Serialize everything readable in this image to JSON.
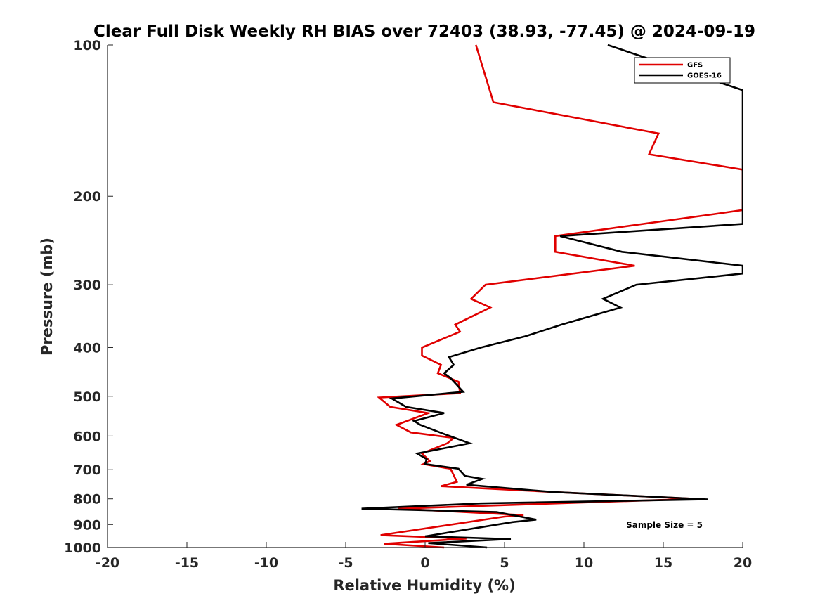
{
  "chart_data": {
    "type": "line",
    "title": "Clear Full Disk Weekly RH BIAS over 72403 (38.93, -77.45) @ 2024-09-19",
    "xlabel": "Relative Humidity (%)",
    "ylabel": "Pressure (mb)",
    "xlim": [
      -20,
      20
    ],
    "ylim": [
      100,
      1000
    ],
    "y_scale": "log",
    "y_reversed": true,
    "x_ticks": [
      -20,
      -15,
      -10,
      -5,
      0,
      5,
      10,
      15,
      20
    ],
    "x_tick_labels": [
      "-20",
      "-15",
      "-10",
      "-5",
      "0",
      "5",
      "10",
      "15",
      "20"
    ],
    "y_ticks": [
      100,
      200,
      300,
      400,
      500,
      600,
      700,
      800,
      900,
      1000
    ],
    "y_tick_labels": [
      "100",
      "200",
      "300",
      "400",
      "500",
      "600",
      "700",
      "800",
      "900",
      "1000"
    ],
    "grid": false,
    "legend_position": "top-right",
    "annotation": "Sample Size = 5",
    "series": [
      {
        "name": "GFS",
        "color": "#e00000",
        "points": [
          [
            3.2,
            100
          ],
          [
            4.3,
            130
          ],
          [
            14.7,
            150
          ],
          [
            14.1,
            165
          ],
          [
            20.0,
            177
          ],
          [
            20.0,
            213
          ],
          [
            18.2,
            217
          ],
          [
            8.2,
            240
          ],
          [
            8.2,
            258
          ],
          [
            13.2,
            275
          ],
          [
            3.8,
            300
          ],
          [
            2.9,
            320
          ],
          [
            4.1,
            333
          ],
          [
            1.9,
            360
          ],
          [
            2.2,
            372
          ],
          [
            -0.2,
            400
          ],
          [
            -0.2,
            415
          ],
          [
            1.0,
            433
          ],
          [
            0.8,
            450
          ],
          [
            2.1,
            468
          ],
          [
            2.2,
            493
          ],
          [
            -2.9,
            503
          ],
          [
            -2.2,
            525
          ],
          [
            0.2,
            540
          ],
          [
            -1.8,
            570
          ],
          [
            -0.9,
            590
          ],
          [
            1.8,
            605
          ],
          [
            1.4,
            620
          ],
          [
            -0.2,
            650
          ],
          [
            0.3,
            673
          ],
          [
            -0.1,
            682
          ],
          [
            1.6,
            697
          ],
          [
            2.0,
            740
          ],
          [
            1.0,
            755
          ],
          [
            8.0,
            775
          ],
          [
            17.0,
            800
          ],
          [
            -1.7,
            837
          ],
          [
            6.2,
            862
          ],
          [
            5.0,
            868
          ],
          [
            -2.8,
            945
          ],
          [
            2.6,
            960
          ],
          [
            -2.6,
            983
          ],
          [
            1.2,
            1000
          ]
        ]
      },
      {
        "name": "GOES-16",
        "color": "#000000",
        "points": [
          [
            11.5,
            100
          ],
          [
            20.0,
            123
          ],
          [
            20.0,
            213
          ],
          [
            20.0,
            227
          ],
          [
            8.5,
            240
          ],
          [
            12.4,
            258
          ],
          [
            20.0,
            275
          ],
          [
            20.0,
            285
          ],
          [
            13.3,
            300
          ],
          [
            11.2,
            320
          ],
          [
            12.3,
            333
          ],
          [
            8.6,
            360
          ],
          [
            6.3,
            380
          ],
          [
            3.5,
            400
          ],
          [
            1.5,
            418
          ],
          [
            1.8,
            433
          ],
          [
            1.2,
            450
          ],
          [
            1.6,
            460
          ],
          [
            2.4,
            490
          ],
          [
            -2.1,
            505
          ],
          [
            -1.2,
            525
          ],
          [
            1.2,
            540
          ],
          [
            -0.7,
            560
          ],
          [
            -0.3,
            570
          ],
          [
            1.1,
            593
          ],
          [
            2.8,
            620
          ],
          [
            1.7,
            630
          ],
          [
            -0.5,
            650
          ],
          [
            0.1,
            667
          ],
          [
            0.0,
            682
          ],
          [
            2.1,
            697
          ],
          [
            2.5,
            720
          ],
          [
            3.6,
            730
          ],
          [
            2.6,
            750
          ],
          [
            8.0,
            775
          ],
          [
            17.8,
            802
          ],
          [
            3.5,
            817
          ],
          [
            -4.0,
            837
          ],
          [
            4.5,
            850
          ],
          [
            7.0,
            880
          ],
          [
            5.5,
            890
          ],
          [
            0.0,
            950
          ],
          [
            5.4,
            962
          ],
          [
            0.2,
            980
          ],
          [
            3.9,
            1000
          ]
        ]
      }
    ]
  }
}
